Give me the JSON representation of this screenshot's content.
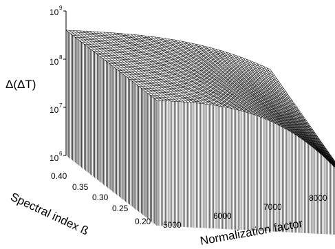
{
  "chart_data": {
    "type": "surface",
    "title": "",
    "xlabel": "Normalization factor",
    "ylabel": "Spectral index ß",
    "zlabel": "Δ(ΔT)",
    "x_ticks": [
      "5000",
      "6000",
      "7000",
      "8000"
    ],
    "y_ticks": [
      "0.20",
      "0.25",
      "0.30",
      "0.35",
      "0.40"
    ],
    "z_ticks": [
      {
        "base": "10",
        "exp": "6"
      },
      {
        "base": "10",
        "exp": "7"
      },
      {
        "base": "10",
        "exp": "8"
      },
      {
        "base": "10",
        "exp": "9"
      }
    ],
    "x_range": [
      4800,
      8000
    ],
    "y_range": [
      0.2,
      0.4
    ],
    "z_range": [
      1000000,
      1000000000
    ],
    "z_scale": "log",
    "surface": {
      "z_at_low_norm_high_beta": 400000000,
      "z_at_low_norm_low_beta": 400000000,
      "z_at_high_norm_high_beta": 100000000,
      "z_at_high_norm_low_beta": 6000000
    },
    "grid": false,
    "legend": "none",
    "colors": {
      "lines": "#000000",
      "background": "#ffffff"
    }
  }
}
